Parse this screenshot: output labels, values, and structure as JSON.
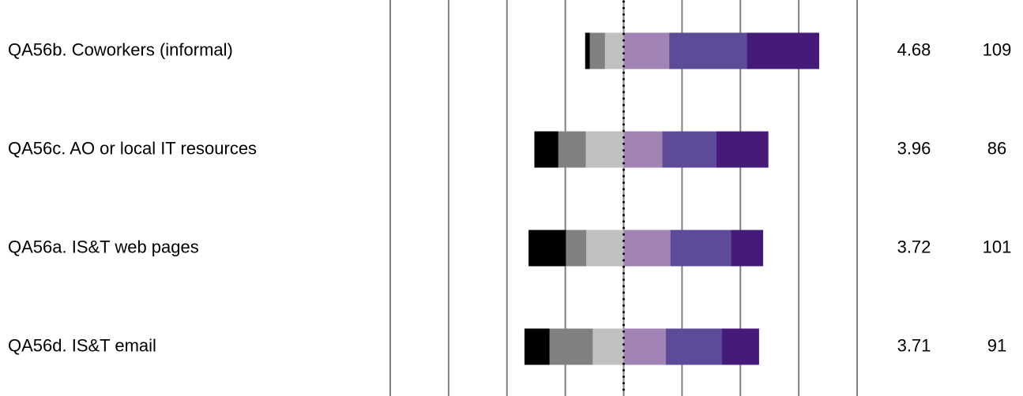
{
  "chart_data": {
    "type": "diverging-bar",
    "categories": [
      "QA56b. Coworkers (informal)",
      "QA56c. AO or local IT resources",
      "QA56a. IS&T web pages",
      "QA56d. IS&T email"
    ],
    "series": [
      {
        "color": "#c0c0c0",
        "values": [
          -3.2,
          -6.5,
          -6.4,
          -5.3
        ]
      },
      {
        "color": "#808080",
        "values": [
          -2.6,
          -4.7,
          -3.5,
          -7.4
        ]
      },
      {
        "color": "#000000",
        "values": [
          -0.8,
          -4.1,
          -6.4,
          -4.3
        ]
      },
      {
        "color": "#a283b5",
        "values": [
          7.8,
          6.6,
          8.0,
          7.2
        ]
      },
      {
        "color": "#5d4a98",
        "values": [
          13.3,
          9.3,
          10.4,
          9.6
        ]
      },
      {
        "color": "#461a78",
        "values": [
          12.4,
          8.9,
          5.5,
          6.4
        ]
      }
    ],
    "means": [
      4.68,
      3.96,
      3.72,
      3.71
    ],
    "n": [
      109,
      86,
      101,
      91
    ],
    "xlim": [
      -40,
      40
    ],
    "xticks": [
      -40,
      -30,
      -20,
      -10,
      0,
      10,
      20,
      30,
      40
    ],
    "grid": true
  }
}
